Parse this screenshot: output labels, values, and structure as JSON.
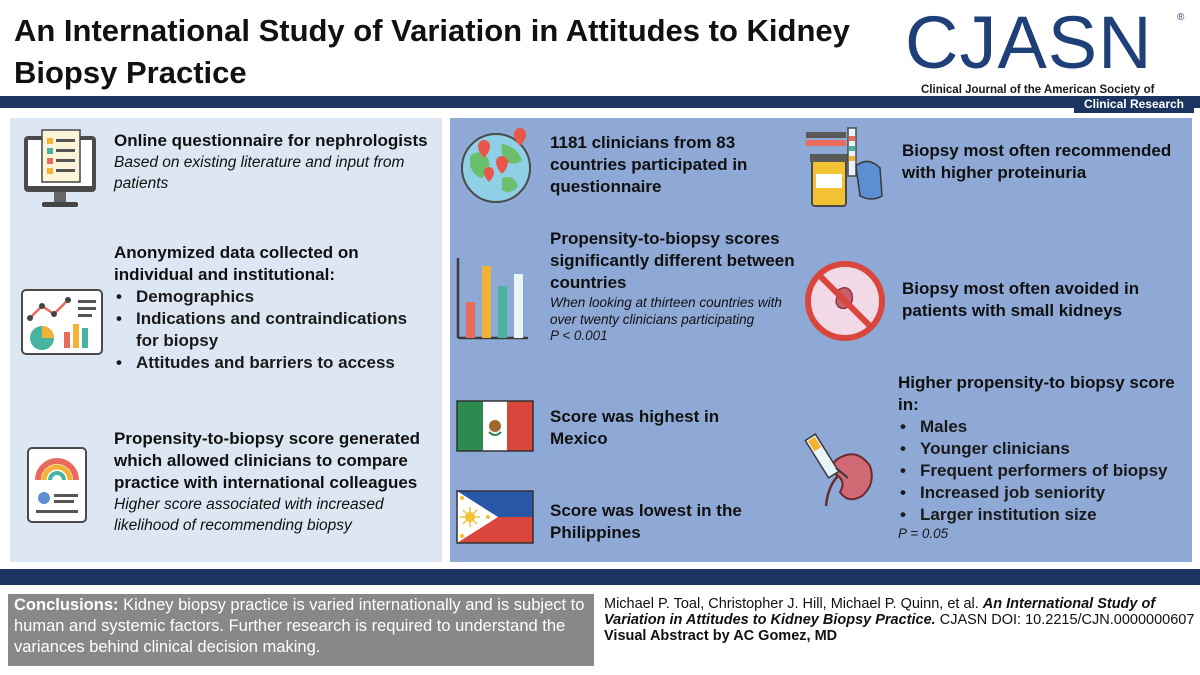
{
  "header": {
    "title": "An International Study of Variation in Attitudes to Kidney Biopsy Practice",
    "logo": "CJASN",
    "logo_reg": "®",
    "journal_name": "Clinical Journal of the American Society of Nephrology",
    "category": "Clinical Research"
  },
  "left": {
    "block1": {
      "title": "Online questionnaire for nephrologists",
      "subtitle": "Based on existing literature and input from patients",
      "icon": "questionnaire-monitor-icon"
    },
    "block2": {
      "title": "Anonymized data collected on individual and institutional:",
      "items": [
        "Demographics",
        "Indications and contraindications for biopsy",
        "Attitudes and barriers to access"
      ],
      "icon": "analytics-charts-icon"
    },
    "block3": {
      "title": "Propensity-to-biopsy score generated which allowed clinicians to compare practice with international colleagues",
      "subtitle": "Higher score associated with increased likelihood of recommending biopsy",
      "icon": "score-report-icon"
    }
  },
  "middle": {
    "block1": {
      "title": "1181 clinicians from 83 countries participated in questionnaire",
      "icon": "globe-pins-icon"
    },
    "block2": {
      "title": "Propensity-to-biopsy scores significantly different between countries",
      "note": "When looking at thirteen countries with over twenty clinicians participating",
      "pvalue": "P < 0.001",
      "icon": "bar-chart-icon"
    },
    "block3": {
      "title": "Score was highest in Mexico",
      "icon": "mexico-flag-icon"
    },
    "block4": {
      "title": "Score was lowest in the Philippines",
      "icon": "philippines-flag-icon"
    }
  },
  "right": {
    "block1": {
      "title": "Biopsy most often recommended with higher proteinuria",
      "icon": "urine-test-icon"
    },
    "block2": {
      "title": "Biopsy most often avoided in patients with small kidneys",
      "icon": "no-small-kidney-icon"
    },
    "block3": {
      "title": "Higher propensity-to biopsy score in:",
      "items": [
        "Males",
        "Younger clinicians",
        "Frequent performers of biopsy",
        "Increased job seniority",
        "Larger institution size"
      ],
      "pvalue": "P = 0.05",
      "icon": "kidney-biopsy-needle-icon"
    }
  },
  "footer": {
    "conclusions_label": "Conclusions:",
    "conclusions_text": " Kidney biopsy practice is varied internationally and is subject to human and systemic factors. Further research is required to understand the variances behind clinical decision making.",
    "authors": "Michael P. Toal, Christopher J. Hill, Michael P. Quinn, et al. ",
    "paper_title": "An International Study of Variation in Attitudes to Kidney Biopsy Practice.",
    "doi": " CJASN DOI: 10.2215/CJN.0000000607",
    "visual_abstract": "Visual Abstract by AC Gomez, MD"
  },
  "colors": {
    "navy": "#1c3560",
    "logo_blue": "#1f3f78",
    "left_panel": "#dde7f4",
    "right_panel": "#8fa9d6",
    "conclusions_bg": "#888888"
  }
}
